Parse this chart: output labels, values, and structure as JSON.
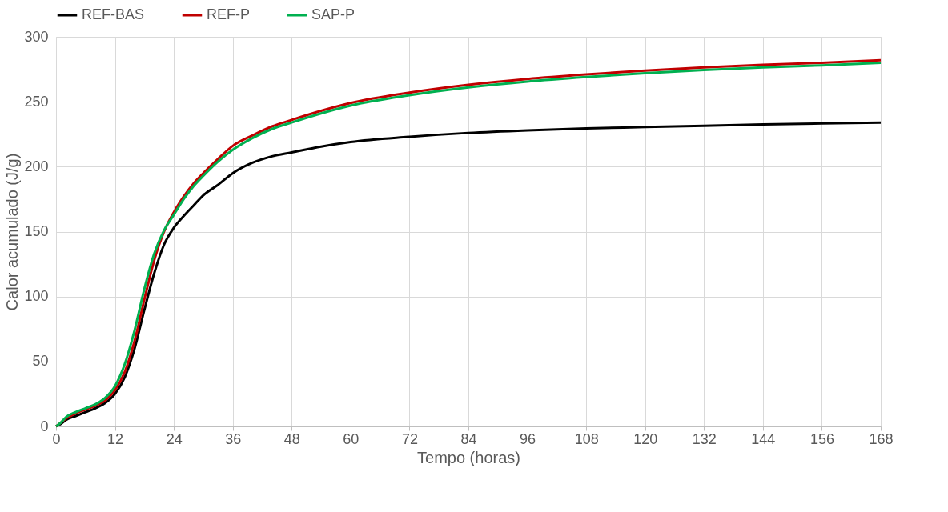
{
  "chart_data": {
    "type": "line",
    "xlabel": "Tempo (horas)",
    "ylabel": "Calor acumulado (J/g)",
    "x": [
      0,
      1,
      2,
      4,
      6,
      8,
      10,
      12,
      14,
      16,
      18,
      20,
      22,
      24,
      26,
      28,
      30,
      33,
      36,
      40,
      44,
      48,
      54,
      60,
      72,
      84,
      96,
      108,
      120,
      132,
      144,
      156,
      168
    ],
    "series": [
      {
        "name": "REF-BAS",
        "color": "#000000",
        "values": [
          0,
          2,
          5,
          8,
          11,
          14,
          18,
          25,
          38,
          60,
          90,
          118,
          140,
          153,
          162,
          170,
          178,
          186,
          195,
          203,
          208,
          211,
          215.5,
          219,
          223,
          226,
          228,
          229.5,
          230.5,
          231.5,
          232.5,
          233.3,
          234
        ]
      },
      {
        "name": "REF-P",
        "color": "#c00000",
        "values": [
          0,
          3,
          6,
          10,
          13,
          16,
          20,
          28,
          42,
          66,
          98,
          128,
          150,
          165,
          177,
          187,
          195,
          206,
          216,
          224,
          231,
          236,
          243,
          249,
          257,
          263,
          267.5,
          271,
          274,
          276.5,
          278.5,
          280,
          282
        ]
      },
      {
        "name": "SAP-P",
        "color": "#00b050",
        "values": [
          0,
          3,
          7,
          11,
          14,
          17,
          22,
          31,
          48,
          74,
          106,
          133,
          151,
          163,
          175,
          185,
          193,
          204,
          213,
          222,
          229,
          234,
          241,
          247,
          255,
          261,
          265.5,
          269,
          272,
          274.5,
          276.5,
          278,
          280
        ]
      }
    ],
    "xlim": [
      0,
      168
    ],
    "xticks": [
      0,
      12,
      24,
      36,
      48,
      60,
      72,
      84,
      96,
      108,
      120,
      132,
      144,
      156,
      168
    ],
    "ylim": [
      0,
      300
    ],
    "yticks": [
      0,
      50,
      100,
      150,
      200,
      250,
      300
    ],
    "grid": true,
    "legend": "top",
    "marker": "none",
    "line_style": "solid"
  }
}
